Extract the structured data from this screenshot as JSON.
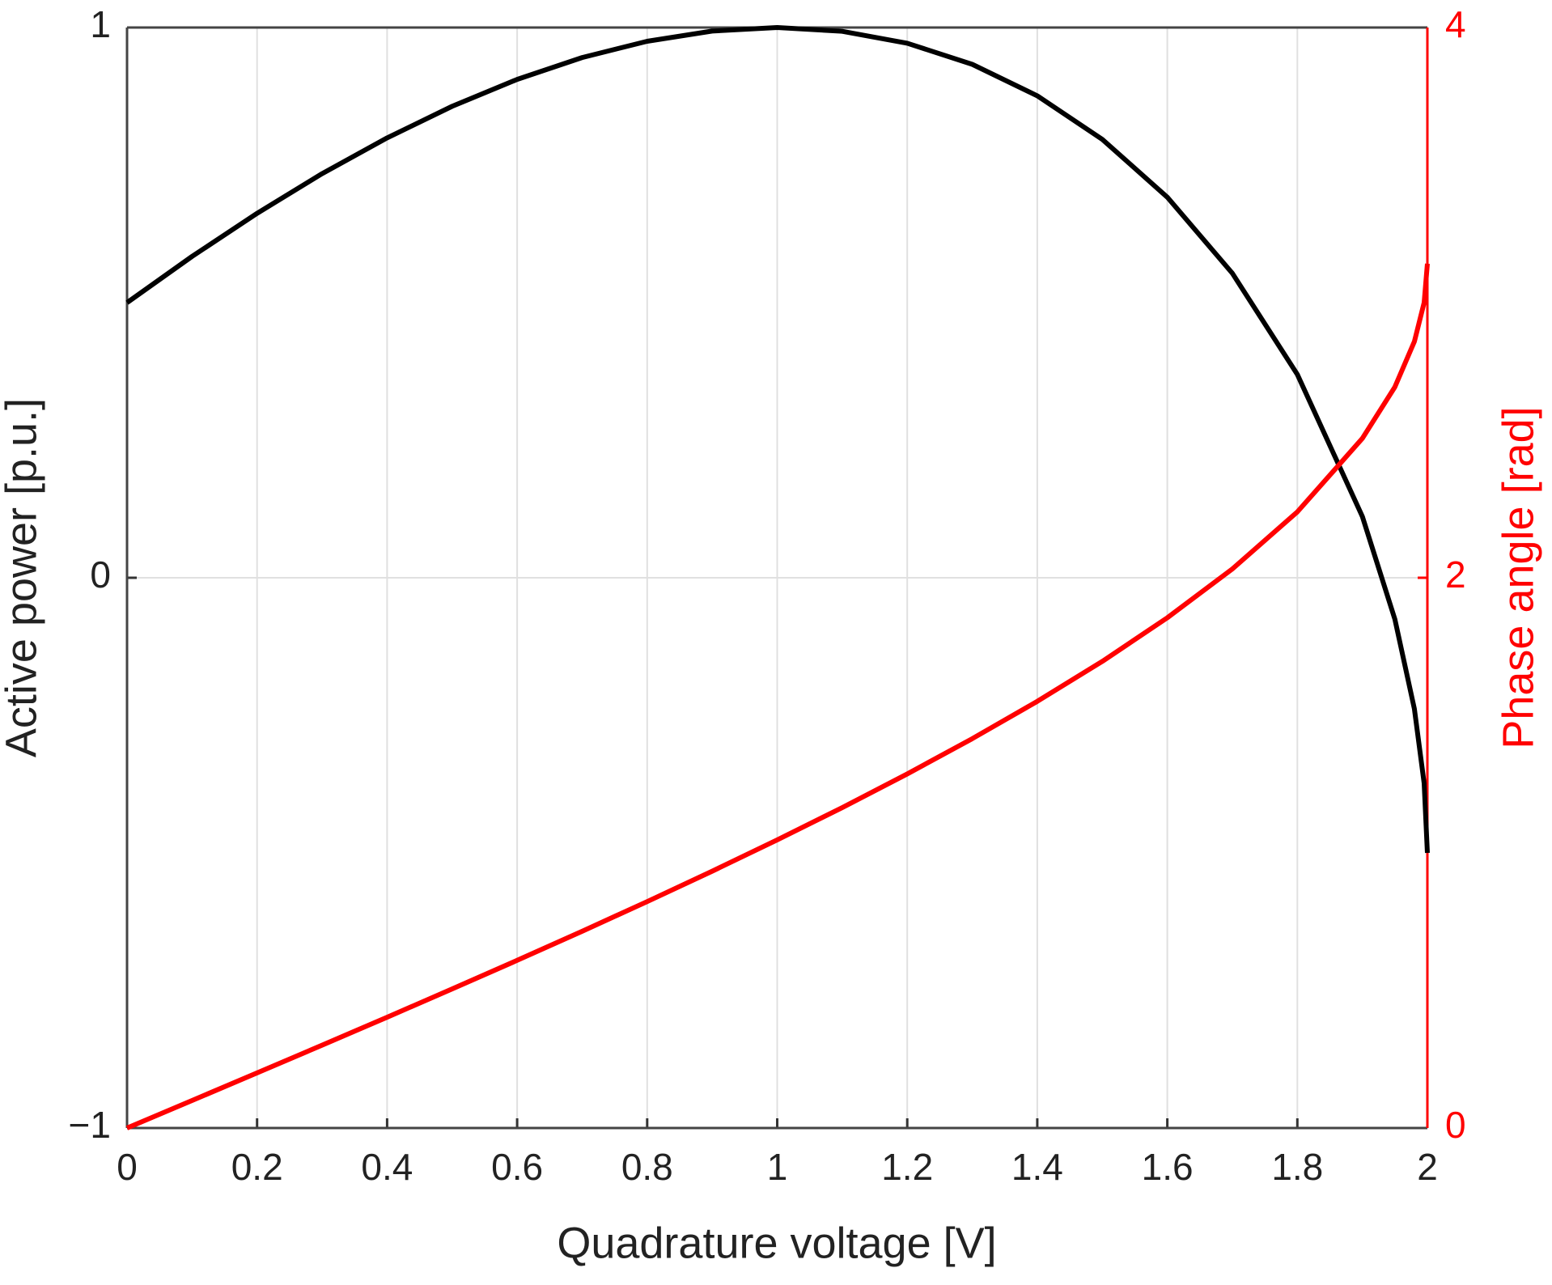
{
  "chart_data": {
    "type": "line",
    "x": [
      0,
      0.1,
      0.2,
      0.3,
      0.4,
      0.5,
      0.6,
      0.7,
      0.8,
      0.9,
      1.0,
      1.1,
      1.2,
      1.3,
      1.4,
      1.5,
      1.6,
      1.7,
      1.8,
      1.9,
      1.95,
      1.98,
      1.995,
      2.0
    ],
    "series": [
      {
        "name": "Active power",
        "color": "#000000",
        "values": [
          0.5,
          0.584,
          0.6623,
          0.7344,
          0.7994,
          0.8568,
          0.9057,
          0.9454,
          0.975,
          0.9936,
          1.0,
          0.9931,
          0.9714,
          0.9331,
          0.8759,
          0.7967,
          0.6916,
          0.5534,
          0.3695,
          0.1113,
          -0.0754,
          -0.2382,
          -0.3734,
          -0.5
        ]
      },
      {
        "name": "Phase angle",
        "color": "#ff0000",
        "axis": "y2",
        "values": [
          0,
          0.1,
          0.2003,
          0.3011,
          0.4027,
          0.5054,
          0.6094,
          0.7151,
          0.823,
          0.9335,
          1.0472,
          1.1647,
          1.287,
          1.4152,
          1.5508,
          1.6961,
          1.8546,
          2.032,
          2.2395,
          2.5065,
          2.6935,
          2.8585,
          3.0001,
          3.1416
        ]
      }
    ],
    "xlabel": "Quadrature voltage [V]",
    "ylabel": "Active power [p.u.]",
    "y2label": "Phase angle [rad]",
    "xlim": [
      0,
      2
    ],
    "xticks": [
      0,
      0.2,
      0.4,
      0.6,
      0.8,
      1,
      1.2,
      1.4,
      1.6,
      1.8,
      2
    ],
    "ylim": [
      -1,
      1
    ],
    "yticks": [
      {
        "value": -1,
        "label": "−1"
      },
      0,
      1
    ],
    "y2lim": [
      0,
      4
    ],
    "y2ticks": [
      0,
      2,
      4
    ],
    "y2color": "#ff0000",
    "grid": true
  }
}
